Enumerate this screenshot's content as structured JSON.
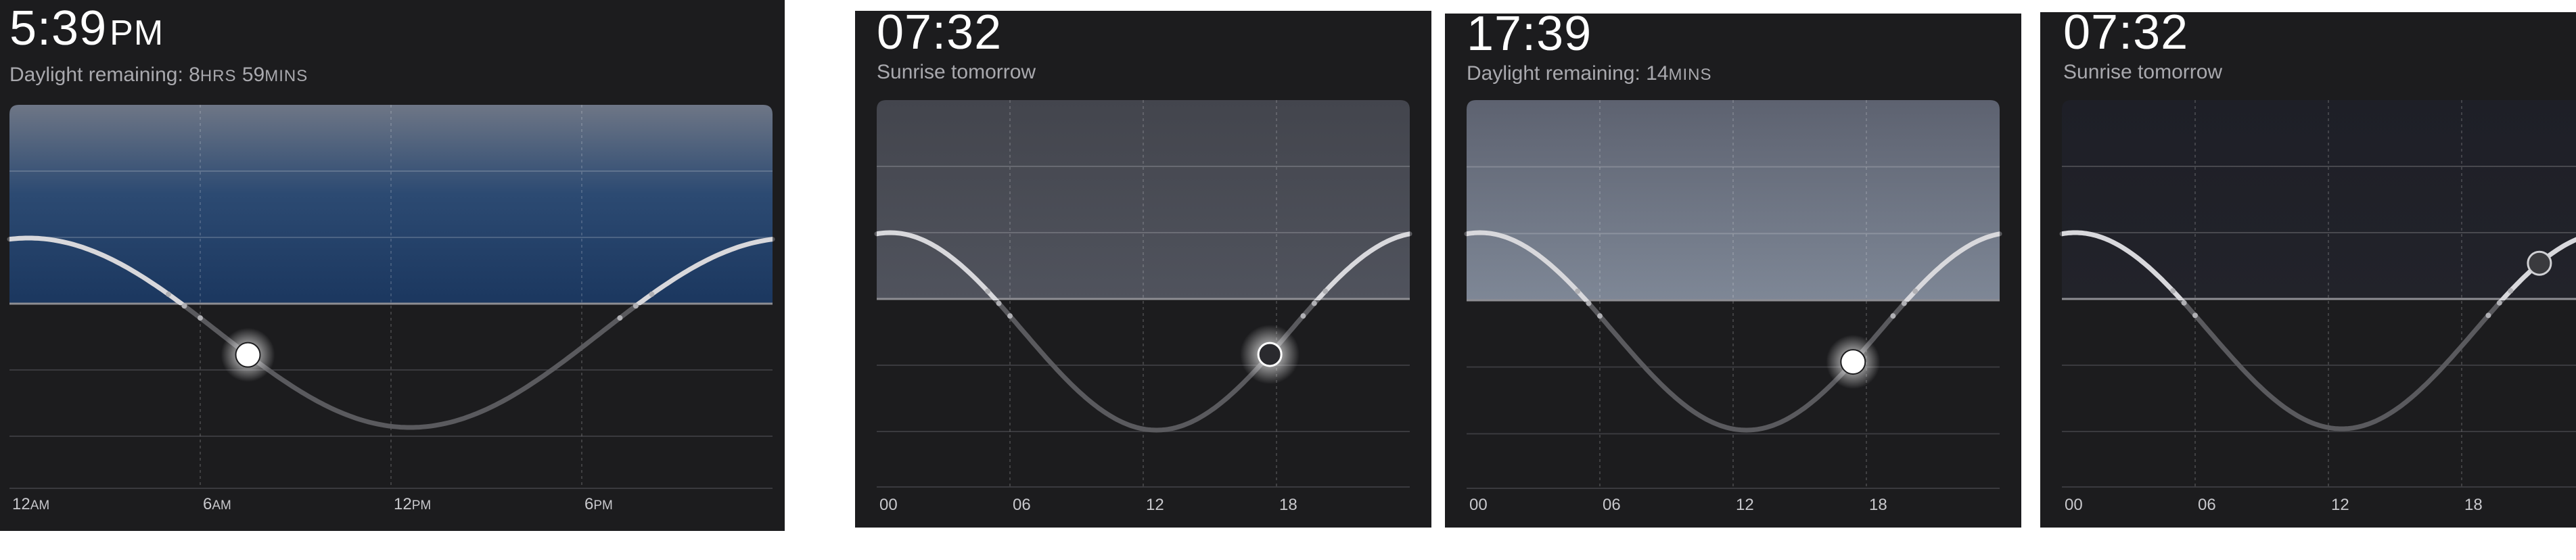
{
  "colors": {
    "panel_bg": "#1c1c1e",
    "day_sky_blue": "#1e3c64",
    "day_sky_gray": "#6e7886",
    "dusk_sky": "#3c3f48",
    "night_sky": "#1f2028",
    "curve": "#c8c8cc",
    "grid": "#3a3a3e"
  },
  "panels": [
    {
      "time_main": "5:39",
      "time_suffix": "PM",
      "subtitle_prefix": "Daylight remaining: 8",
      "subtitle_parts": [
        {
          "text": "HRS",
          "small": true
        },
        {
          "text": " 59",
          "small": false
        },
        {
          "text": "MINS",
          "small": true
        }
      ],
      "ticks": [
        {
          "num": "12",
          "suffix": "AM"
        },
        {
          "num": "6",
          "suffix": "AM"
        },
        {
          "num": "12",
          "suffix": "PM"
        },
        {
          "num": "6",
          "suffix": "PM"
        }
      ],
      "sun_hour": 7.5,
      "sun_state": "glow",
      "sky": "blue"
    },
    {
      "time_main": "07:32",
      "time_suffix": "",
      "subtitle_prefix": "Sunrise tomorrow",
      "subtitle_parts": [],
      "ticks": [
        {
          "num": "00",
          "suffix": ""
        },
        {
          "num": "06",
          "suffix": ""
        },
        {
          "num": "12",
          "suffix": ""
        },
        {
          "num": "18",
          "suffix": ""
        }
      ],
      "sun_hour": 17.7,
      "sun_state": "ring",
      "sky": "dusk"
    },
    {
      "time_main": "17:39",
      "time_suffix": "",
      "subtitle_prefix": "Daylight remaining: 14",
      "subtitle_parts": [
        {
          "text": "MINS",
          "small": true
        }
      ],
      "ticks": [
        {
          "num": "00",
          "suffix": ""
        },
        {
          "num": "06",
          "suffix": ""
        },
        {
          "num": "12",
          "suffix": ""
        },
        {
          "num": "18",
          "suffix": ""
        }
      ],
      "sun_hour": 17.4,
      "sun_state": "glow",
      "sky": "gray"
    },
    {
      "time_main": "07:32",
      "time_suffix": "",
      "subtitle_prefix": "Sunrise tomorrow",
      "subtitle_parts": [],
      "ticks": [
        {
          "num": "00",
          "suffix": ""
        },
        {
          "num": "06",
          "suffix": ""
        },
        {
          "num": "12",
          "suffix": ""
        },
        {
          "num": "18",
          "suffix": ""
        }
      ],
      "sun_hour": 21.5,
      "sun_state": "dim",
      "sky": "night"
    }
  ]
}
